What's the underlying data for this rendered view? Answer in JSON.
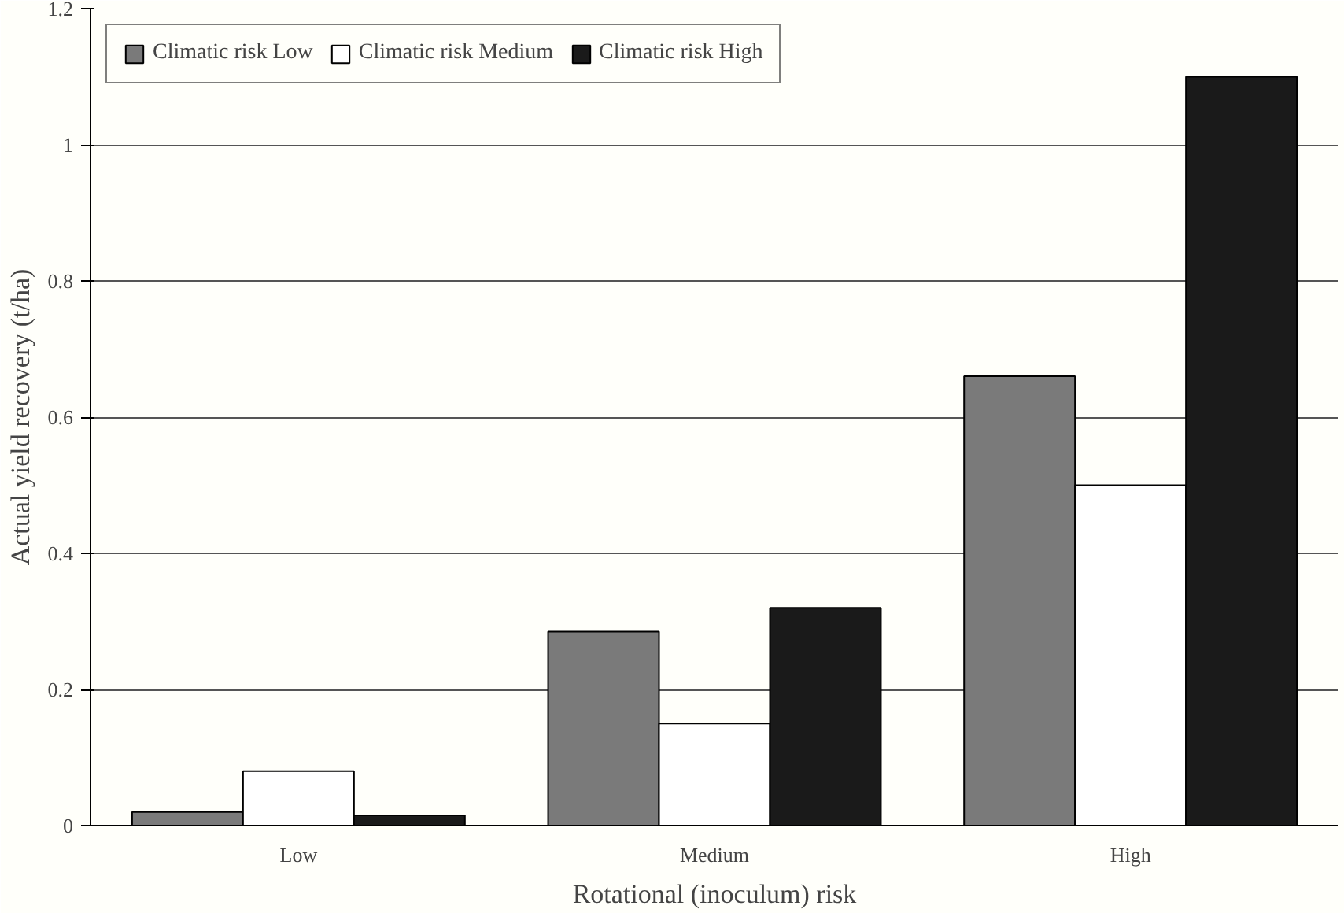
{
  "chart_data": {
    "type": "bar",
    "xlabel": "Rotational (inoculum) risk",
    "ylabel": "Actual yield recovery (t/ha)",
    "categories": [
      "Low",
      "Medium",
      "High"
    ],
    "series": [
      {
        "name": "Climatic risk Low",
        "color": "#7a7a7a",
        "values": [
          0.02,
          0.285,
          0.66
        ]
      },
      {
        "name": "Climatic risk Medium",
        "color": "#ffffff",
        "values": [
          0.08,
          0.15,
          0.5
        ]
      },
      {
        "name": "Climatic risk High",
        "color": "#1a1a1a",
        "values": [
          0.015,
          0.32,
          1.1
        ]
      }
    ],
    "ylim": [
      0,
      1.2
    ],
    "yticks": [
      0,
      0.2,
      0.4,
      0.6,
      0.8,
      1,
      1.2
    ],
    "grid": "y",
    "legend": "top left"
  }
}
